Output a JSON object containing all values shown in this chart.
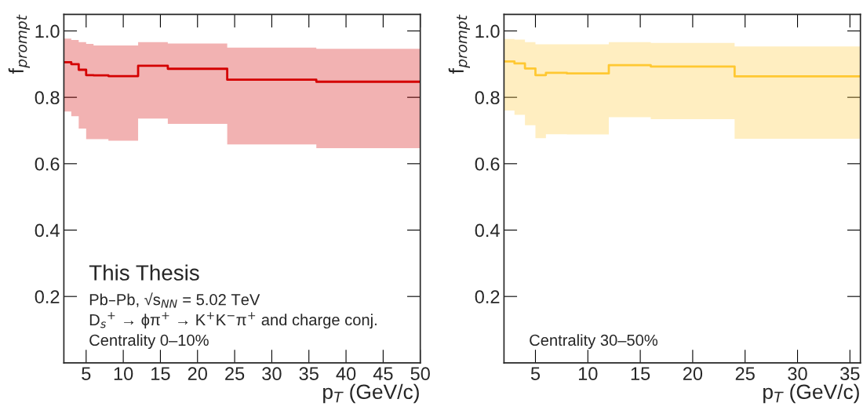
{
  "chart_data": [
    {
      "type": "step",
      "xlim": [
        2,
        50
      ],
      "xticks": [
        5,
        10,
        15,
        20,
        25,
        30,
        35,
        40,
        45,
        50
      ],
      "ylim": [
        0,
        1.05
      ],
      "yticks": [
        0.2,
        0.4,
        0.6,
        0.8,
        {
          "value": 1.0,
          "label": "1.0"
        }
      ],
      "xlabel": "p$_{T}$ (GeV/c)",
      "ylabel": "f$_{prompt}$",
      "grid": false,
      "series": [
        {
          "color": "#d40000",
          "x": [
            2,
            3,
            4,
            5,
            6,
            8,
            12,
            16,
            24,
            36,
            50
          ],
          "values": [
            0.906,
            0.9,
            0.883,
            0.867,
            0.866,
            0.864,
            0.895,
            0.886,
            0.853,
            0.847,
            0.847
          ],
          "lower": [
            0.757,
            0.743,
            0.706,
            0.674,
            0.674,
            0.669,
            0.736,
            0.72,
            0.658,
            0.647,
            0.647
          ],
          "upper": [
            0.977,
            0.973,
            0.966,
            0.961,
            0.956,
            0.956,
            0.966,
            0.962,
            0.95,
            0.946,
            0.946
          ]
        }
      ],
      "annotations": [
        "This Thesis",
        "Pb–Pb, √s$_{NN}$ = 5.02 TeV",
        "D$_{s}$$^{+}$ → ϕπ$^{+}$ → K$^{+}$K$^{−}$π$^{+}$ and charge conj.",
        "Centrality 0–10%"
      ]
    },
    {
      "type": "step",
      "xlim": [
        2,
        36
      ],
      "xticks": [
        5,
        10,
        15,
        20,
        25,
        30,
        35
      ],
      "ylim": [
        0,
        1.05
      ],
      "yticks": [
        0.2,
        0.4,
        0.6,
        0.8,
        {
          "value": 1.0,
          "label": "1.0"
        }
      ],
      "xlabel": "p$_{T}$ (GeV/c)",
      "ylabel": "f$_{prompt}$",
      "grid": false,
      "series": [
        {
          "color": "#ffc832",
          "x": [
            2,
            3,
            4,
            5,
            6,
            8,
            12,
            16,
            24,
            36
          ],
          "values": [
            0.908,
            0.902,
            0.887,
            0.867,
            0.874,
            0.872,
            0.897,
            0.893,
            0.863,
            0.863
          ],
          "lower": [
            0.76,
            0.747,
            0.716,
            0.677,
            0.689,
            0.688,
            0.74,
            0.734,
            0.675,
            0.675
          ],
          "upper": [
            0.976,
            0.974,
            0.966,
            0.96,
            0.96,
            0.96,
            0.966,
            0.964,
            0.953,
            0.953
          ]
        }
      ],
      "annotations": [
        "Centrality 30–50%"
      ]
    }
  ]
}
